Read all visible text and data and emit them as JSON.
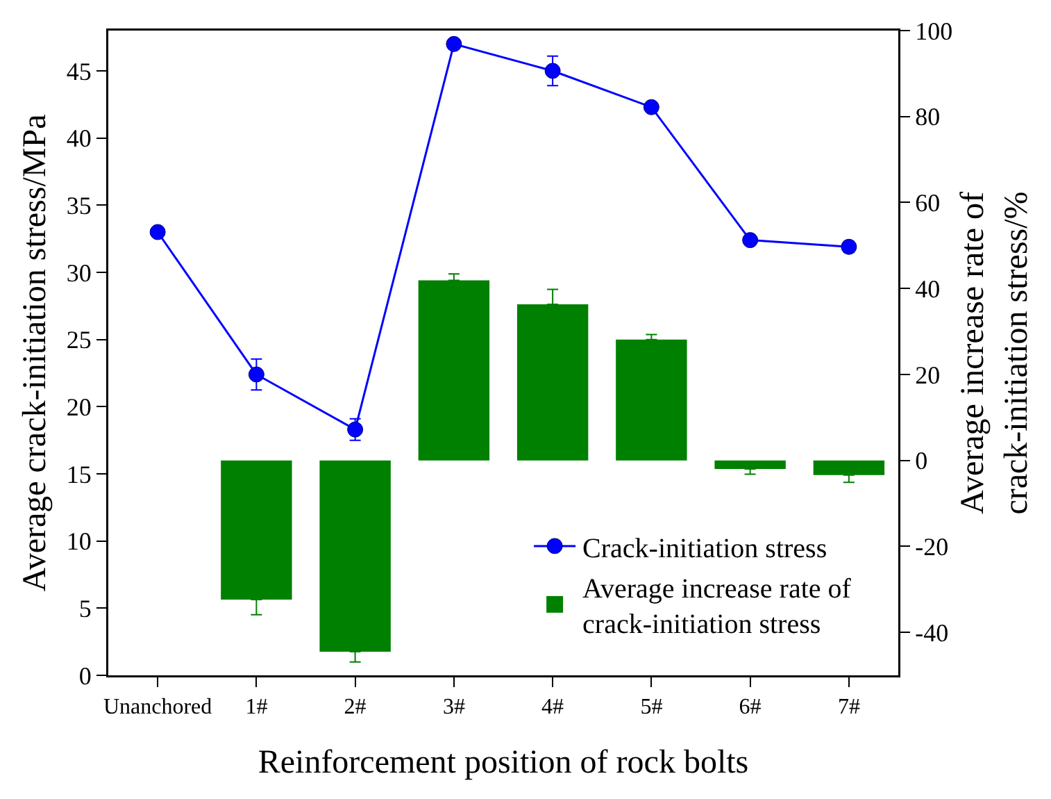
{
  "chart_data": {
    "type": "line",
    "xlabel": "Reinforcement position of rock bolts",
    "ylabel": "Average crack-initiation stress/MPa",
    "y2label": "Average increase rate of crack-initiation stress/%",
    "categories": [
      "Unanchored",
      "1#",
      "2#",
      "3#",
      "4#",
      "5#",
      "6#",
      "7#"
    ],
    "series": [
      {
        "name": "Crack-initiation stress",
        "color": "#0000ff",
        "marker": "circle",
        "values": [
          33.0,
          22.4,
          18.3,
          47.0,
          45.0,
          42.3,
          32.4,
          31.9
        ],
        "errors": [
          null,
          1.15,
          0.8,
          null,
          1.1,
          null,
          null,
          0.4
        ]
      },
      {
        "name": "Average increase rate of crack-initiation stress",
        "type": "bar",
        "axis": "y2",
        "color": "#008000",
        "values": [
          null,
          -32.4,
          -44.5,
          41.9,
          36.3,
          28.1,
          -2.0,
          -3.4
        ],
        "errors": [
          null,
          [
            -35.9,
            -32.4
          ],
          [
            -46.9,
            -44.5
          ],
          [
            41.9,
            43.4
          ],
          [
            36.3,
            39.8
          ],
          [
            28.1,
            29.3
          ],
          [
            -3.2,
            -2.0
          ],
          [
            -5.1,
            -3.4
          ]
        ]
      }
    ],
    "ylim": [
      0,
      48
    ],
    "yticks": [
      0,
      5,
      10,
      15,
      20,
      25,
      30,
      35,
      40,
      45
    ],
    "y2lim": [
      -50,
      100
    ],
    "y2ticks": [
      -40,
      -20,
      0,
      20,
      40,
      60,
      80,
      100
    ],
    "legend": "bottom right",
    "grid": false
  }
}
